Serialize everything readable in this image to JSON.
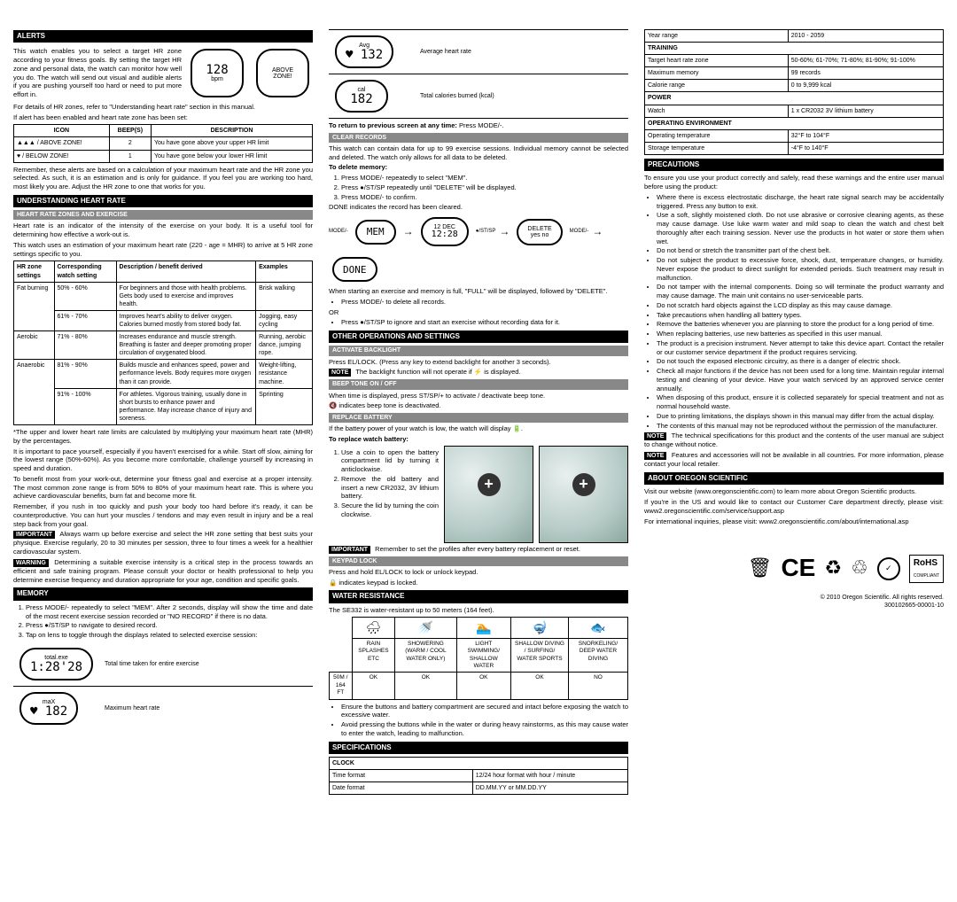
{
  "col1": {
    "alerts_header": "ALERTS",
    "alerts_p1": "This watch enables you to select a target HR zone according to your fitness goals. By setting the target HR zone and personal data, the watch can monitor how well you do. The watch will send out visual and audible alerts if you are pushing yourself too hard or need to put more effort in.",
    "alerts_p2": "For details of HR zones, refer to \"Understanding heart rate\" section in this manual.",
    "alerts_p3": "If alert has been enabled and heart rate zone has been set:",
    "alerts_table": {
      "h1": "ICON",
      "h2": "BEEP(S)",
      "h3": "DESCRIPTION",
      "r1c1": "▲▲▲ / ABOVE ZONE!",
      "r1c2": "2",
      "r1c3": "You have gone above your upper HR limit",
      "r2c1": "♥ / BELOW ZONE!",
      "r2c2": "1",
      "r2c3": "You have gone below your lower HR limit"
    },
    "alerts_lcd1": "128",
    "alerts_lcd1_unit": "bpm",
    "alerts_lcd2_top": "ABOVE",
    "alerts_lcd2_bot": "ZONE!",
    "alerts_p4": "Remember, these alerts are based on a calculation of your maximum heart rate and the HR zone you selected. As such, it is an estimation and is only for guidance. If you feel you are working too hard, most likely you are. Adjust the HR zone to one that works for you.",
    "uhr_header": "UNDERSTANDING HEART RATE",
    "uhr_sub": "HEART RATE ZONES AND EXERCISE",
    "uhr_p1": "Heart rate is an indicator of the intensity of the exercise on your body. It is a useful tool for determining how effective a work-out is.",
    "uhr_p2": "This watch uses an estimation of your maximum heart rate (220 - age = MHR) to arrive at 5 HR zone settings specific to you.",
    "hr_table": {
      "h1": "HR zone settings",
      "h2": "Corresponding watch setting",
      "h3": "Description / benefit derived",
      "h4": "Examples",
      "z1": "Fat burning",
      "z1a": "50% - 60%",
      "z1ad": "For beginners and those with health problems. Gets body used to exercise and improves health.",
      "z1ae": "Brisk walking",
      "z1b": "61% - 70%",
      "z1bd": "Improves heart's ability to deliver oxygen. Calories burned mostly from stored body fat.",
      "z1be": "Jogging, easy cycling",
      "z2": "Aerobic",
      "z2a": "71% - 80%",
      "z2ad": "Increases endurance and muscle strength. Breathing is faster and deeper promoting proper circulation of oxygenated blood.",
      "z2ae": "Running, aerobic dance, jumping rope.",
      "z3": "Anaerobic",
      "z3a": "81% - 90%",
      "z3ad": "Builds muscle and enhances speed, power and performance levels. Body requires more oxygen than it can provide.",
      "z3ae": "Weight-lifting, resistance machine.",
      "z3b": "91% - 100%",
      "z3bd": "For athletes. Vigorous training, usually done in short bursts to enhance power and performance. May increase chance of injury and soreness.",
      "z3be": "Sprinting"
    },
    "uhr_p3": "*The upper and lower heart rate limits are calculated by multiplying your maximum heart rate (MHR) by the percentages.",
    "uhr_p4": "It is important to pace yourself, especially if you haven't exercised for a while. Start off slow, aiming for the lowest range (50%-60%). As you become more comfortable, challenge yourself by increasing in speed and duration.",
    "uhr_p5": "To benefit most from your work-out, determine your fitness goal and exercise at a proper intensity. The most common zone range is from 50% to 80% of your maximum heart rate. This is where you achieve cardiovascular benefits, burn fat and become more fit.",
    "uhr_p6": "Remember, if you rush in too quickly and push your body too hard before it's ready, it can be counterproductive. You can hurt your muscles / tendons and may even result in injury and be a real step back from your goal.",
    "imp1": "IMPORTANT",
    "imp1_txt": " Always warm up before exercise and select the HR zone setting that best suits your physique. Exercise regularly, 20 to 30 minutes per session, three to four times a week for a healthier cardiovascular system.",
    "warn1": "WARNING",
    "warn1_txt": " Determining a suitable exercise intensity is a critical step in the process towards an efficient and safe training program. Please consult your doctor or health professional to help you determine exercise frequency and duration appropriate for your age, condition and specific goals.",
    "mem_header": "MEMORY",
    "mem_li1": "Press MODE/- repeatedly to select \"MEM\". After 2 seconds, display will show the time and date of the most recent exercise session recorded or \"NO RECORD\" if there is no data.",
    "mem_li2": "Press ●/ST/SP to navigate to desired record.",
    "mem_li3": "Tap on lens to toggle through the displays related to selected exercise session:",
    "mem_lcd1_top": "total.exe",
    "mem_lcd1": "1:28'28",
    "mem_lcd1_desc": "Total time taken for entire exercise",
    "mem_lcd2_top": "maX",
    "mem_lcd2": "♥ 182",
    "mem_lcd2_desc": "Maximum heart rate"
  },
  "col2": {
    "avg_lcd_top": "Avg",
    "avg_lcd": "♥ 132",
    "avg_desc": "Average heart rate",
    "cal_lcd_top": "cal",
    "cal_lcd": "182",
    "cal_desc": "Total calories burned (kcal)",
    "return_txt": "To return to previous screen at any time: ",
    "return_bold": "Press MODE/-.",
    "clear_header": "CLEAR RECORDS",
    "clear_p1": "This watch can contain data for up to 99 exercise sessions. Individual memory cannot be selected and deleted. The watch only allows for all data to be deleted.",
    "clear_sub": "To delete memory:",
    "clear_li1": "Press MODE/- repeatedly to select \"MEM\".",
    "clear_li2": "Press ●/ST/SP repeatedly until \"DELETE\" will be displayed.",
    "clear_li3": "Press MODE/- to confirm.",
    "clear_done": "DONE indicates the record has been cleared.",
    "seq1": "MEM",
    "seq_arrow": "→",
    "seq2_top": "12 DEC",
    "seq2": "12:28",
    "seq3_top": "DELETE",
    "seq3": "yes  no",
    "seq4": "DONE",
    "seq_l1": "MODE/-",
    "seq_l2": "●/ST/SP",
    "seq_l3": "MODE/-",
    "clear_p2": "When starting an exercise and memory is full, \"FULL\" will be displayed, followed by \"DELETE\".",
    "clear_li4": "Press MODE/- to delete all records.",
    "clear_or": "OR",
    "clear_li5": "Press ●/ST/SP to ignore and start an exercise without recording data for it.",
    "other_header": "OTHER OPERATIONS AND SETTINGS",
    "backlight_sub": "ACTIVATE BACKLIGHT",
    "backlight_p1": "Press EL/LOCK. (Press any key to extend backlight for another 3 seconds).",
    "backlight_note": "NOTE",
    "backlight_note_txt": " The backlight function will not operate if ⚡ is displayed.",
    "beep_sub": "BEEP TONE ON / OFF",
    "beep_p1": "When time is displayed, press ST/SP/+ to activate / deactivate beep tone.",
    "beep_p2": "🔇 indicates beep tone is deactivated.",
    "battery_sub": "REPLACE BATTERY",
    "battery_p1": "If the battery power of your watch is low, the watch will display 🔋.",
    "battery_sub2": "To replace watch battery:",
    "battery_li1": "Use a coin to open the battery compartment lid by turning it anticlockwise.",
    "battery_li2": "Remove the old battery and insert a new CR2032, 3V lithium battery.",
    "battery_li3": "Secure the lid by turning the coin clockwise.",
    "battery_imp": "IMPORTANT",
    "battery_imp_txt": " Remember to set the profiles after every battery replacement or reset.",
    "keypad_sub": "KEYPAD LOCK",
    "keypad_p1": "Press and hold EL/LOCK to lock or unlock keypad.",
    "keypad_p2": "🔒 indicates keypad is locked.",
    "wr_header": "WATER RESISTANCE",
    "wr_p1": "The SE332 is water-resistant up to 50 meters (164 feet).",
    "wr_table": {
      "c1": "RAIN SPLASHES ETC",
      "c2": "SHOWERING (WARM / COOL WATER ONLY)",
      "c3": "LIGHT SWIMMING/ SHALLOW WATER",
      "c4": "SHALLOW DIVING / SURFING/ WATER SPORTS",
      "c5": "SNORKELING/ DEEP WATER DIVING",
      "r1": "50M / 164 FT",
      "ok": "OK",
      "no": "NO",
      "i1": "🌧",
      "i2": "🚿",
      "i3": "🏊",
      "i4": "🤿",
      "i5": "🐟"
    },
    "wr_li1": "Ensure the buttons and battery compartment are secured and intact before exposing the watch to excessive water.",
    "wr_li2": "Avoid pressing the buttons while in the water or during heavy rainstorms, as this may cause water to enter the watch, leading to malfunction.",
    "spec_header": "SPECIFICATIONS",
    "spec_clock": "CLOCK",
    "spec_r1a": "Time format",
    "spec_r1b": "12/24 hour format with hour / minute",
    "spec_r2a": "Date format",
    "spec_r2b": "DD.MM.YY or MM.DD.YY"
  },
  "col3": {
    "spec_r3a": "Year range",
    "spec_r3b": "2010 - 2059",
    "spec_training": "TRAINING",
    "spec_r4a": "Target heart rate zone",
    "spec_r4b": "50-60%; 61-70%; 71-80%; 81-90%; 91-100%",
    "spec_r5a": "Maximum memory",
    "spec_r5b": "99 records",
    "spec_r6a": "Calorie range",
    "spec_r6b": "0 to 9,999 kcal",
    "spec_power": "POWER",
    "spec_r7a": "Watch",
    "spec_r7b": "1 x CR2032 3V lithium battery",
    "spec_env": "OPERATING ENVIRONMENT",
    "spec_r8a": "Operating temperature",
    "spec_r8b": "32°F to 104°F",
    "spec_r9a": "Storage temperature",
    "spec_r9b": "-4°F to 140°F",
    "prec_header": "PRECAUTIONS",
    "prec_p1": "To ensure you use your product correctly and safely, read these warnings and the entire user manual before using the product:",
    "prec": [
      "Where there is excess electrostatic discharge, the heart rate signal search may be accidentally triggered. Press any button to exit.",
      "Use a soft, slightly moistened cloth. Do not use abrasive or corrosive cleaning agents, as these may cause damage. Use luke warm water and mild soap to clean the watch and chest belt thoroughly after each training session. Never use the products in hot water or store them when wet.",
      "Do not bend or stretch the transmitter part of the chest belt.",
      "Do not subject the product to excessive force, shock, dust, temperature changes, or humidity. Never expose the product to direct sunlight for extended periods. Such treatment may result in malfunction.",
      "Do not tamper with the internal components. Doing so will terminate the product warranty and may cause damage. The main unit contains no user-serviceable parts.",
      "Do not scratch hard objects against the LCD display as this may cause damage.",
      "Take precautions when handling all battery types.",
      "Remove the batteries whenever you are planning to store the product for a long period of time.",
      "When replacing batteries, use new batteries as specified in this user manual.",
      "The product is a precision instrument. Never attempt to take this device apart. Contact the retailer or our customer service department if the product requires servicing.",
      "Do not touch the exposed electronic circuitry, as there is a danger of electric shock.",
      "Check all major functions if the device has not been used for a long time. Maintain regular internal testing and cleaning of your device. Have your watch serviced by an approved service center annually.",
      "When disposing of this product, ensure it is collected separately for special treatment and not as normal household waste.",
      "Due to printing limitations, the displays shown in this manual may differ from the actual display.",
      "The contents of this manual may not be reproduced without the permission of the manufacturer."
    ],
    "note1": "NOTE",
    "note1_txt": " The technical specifications for this product and the contents of the user manual are subject to change without notice.",
    "note2": "NOTE",
    "note2_txt": " Features and accessories will not be available in all countries. For more information, please contact your local retailer.",
    "about_header": "ABOUT OREGON SCIENTIFIC",
    "about_p1": "Visit our website (www.oregonscientific.com) to learn more about Oregon Scientific products.",
    "about_p2": "If you're in the US and would like to contact our Customer Care department directly, please visit: www2.oregonscientific.com/service/support.asp",
    "about_p3": "For international inquiries, please visit: www2.oregonscientific.com/about/international.asp",
    "footer1": "© 2010 Oregon Scientific. All rights reserved.",
    "footer2": "300102665-00001-10",
    "cert_rohs": "RoHS",
    "cert_rohs2": "COMPLIANT"
  }
}
